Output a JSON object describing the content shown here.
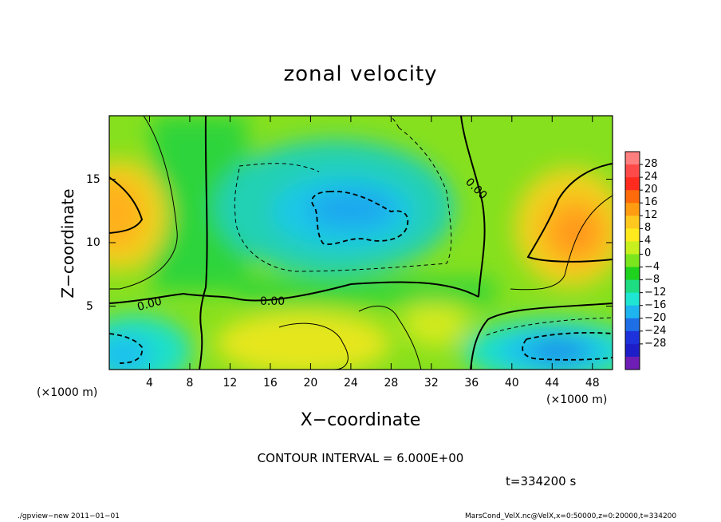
{
  "chart_data": {
    "type": "heatmap",
    "title": "zonal velocity",
    "xlabel": "X−coordinate",
    "ylabel": "Z−coordinate",
    "x_unit": "(×1000 m)",
    "z_unit": "(×1000 m)",
    "xlim": [
      0,
      50
    ],
    "ylim": [
      0,
      20
    ],
    "x_ticks": [
      "4",
      "8",
      "12",
      "16",
      "20",
      "24",
      "28",
      "32",
      "36",
      "40",
      "44",
      "48"
    ],
    "y_ticks": [
      "5",
      "10",
      "15"
    ],
    "colorbar_ticks": [
      "28",
      "24",
      "20",
      "16",
      "12",
      "8",
      "4",
      "0",
      "−4",
      "−8",
      "−12",
      "−16",
      "−20",
      "−24",
      "−28"
    ],
    "colorbar_colors": [
      "#ff7f7f",
      "#ff4a4a",
      "#ff2b1f",
      "#ff6a0a",
      "#ff9c12",
      "#ffc81e",
      "#ffea1e",
      "#c8f01e",
      "#7be61e",
      "#1ed21e",
      "#1edc82",
      "#1ee6d2",
      "#1eb4f0",
      "#1e6ee6",
      "#1e32dc",
      "#1e1ec8",
      "#6e1eb4"
    ],
    "contour_labels": [
      "0.00",
      "0.00",
      "0.00"
    ],
    "contour_interval": "6.000E+00",
    "features": [
      {
        "name": "positive core left",
        "x": 1.5,
        "z": 12,
        "value": 14
      },
      {
        "name": "positive core right",
        "x": 46,
        "z": 11,
        "value": 16
      },
      {
        "name": "negative core upper center",
        "x": 24,
        "z": 12,
        "value": -10
      },
      {
        "name": "negative core lower left",
        "x": 2,
        "z": 2,
        "value": -8
      },
      {
        "name": "negative core lower right",
        "x": 46,
        "z": 2,
        "value": -12
      }
    ]
  },
  "annotation": {
    "contour_interval_text": "CONTOUR INTERVAL = 6.000E+00",
    "time_text": "t=334200 s"
  },
  "footer": {
    "left": "./gpview−new   2011−01−01",
    "right": "MarsCond_VelX.nc@VelX,x=0:50000,z=0:20000,t=334200"
  }
}
